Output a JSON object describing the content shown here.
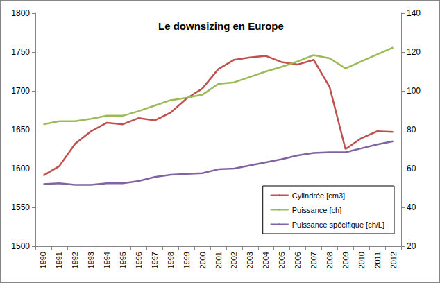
{
  "chart_data": {
    "type": "line",
    "title": "Le downsizing en Europe",
    "categories": [
      "1990",
      "1991",
      "1992",
      "1993",
      "1994",
      "1995",
      "1996",
      "1997",
      "1998",
      "1999",
      "2000",
      "2001",
      "2002",
      "2003",
      "2004",
      "2005",
      "2006",
      "2007",
      "2008",
      "2009",
      "2010",
      "2011",
      "2012"
    ],
    "series": [
      {
        "name": "Cylindrée [cm3]",
        "color": "#c0504d",
        "values": [
          1591,
          1603,
          1632,
          1648,
          1659,
          1657,
          1665,
          1662,
          1672,
          1690,
          1703,
          1728,
          1740,
          1743,
          1745,
          1737,
          1734,
          1740,
          1705,
          1625,
          1639,
          1648,
          1647
        ]
      },
      {
        "name": "Puissance [ch]",
        "color": "#9bbb59",
        "axis": "y2",
        "values": [
          82.8,
          84.4,
          84.4,
          85.6,
          87.2,
          87.2,
          89.6,
          92.4,
          95.2,
          96.4,
          98,
          103.6,
          104.4,
          107.2,
          110,
          112.4,
          115.2,
          118.4,
          116.8,
          111.6,
          115.2,
          118.8,
          122.4
        ]
      },
      {
        "name": "Puissance spécifique [ch/L]",
        "color": "#8064a2",
        "axis": "y2",
        "values": [
          52,
          52.4,
          51.6,
          51.6,
          52.4,
          52.4,
          53.6,
          55.6,
          56.8,
          57.2,
          57.6,
          59.6,
          60,
          61.6,
          63.2,
          64.8,
          66.8,
          68,
          68.4,
          68.4,
          70.4,
          72.4,
          74
        ]
      }
    ],
    "ylim": [
      1500,
      1800
    ],
    "yticks": [
      1500,
      1550,
      1600,
      1650,
      1700,
      1750,
      1800
    ],
    "y2lim": [
      20,
      140
    ],
    "y2ticks": [
      20,
      40,
      60,
      80,
      100,
      120,
      140
    ],
    "grid": false,
    "legend": "bottom-right"
  }
}
